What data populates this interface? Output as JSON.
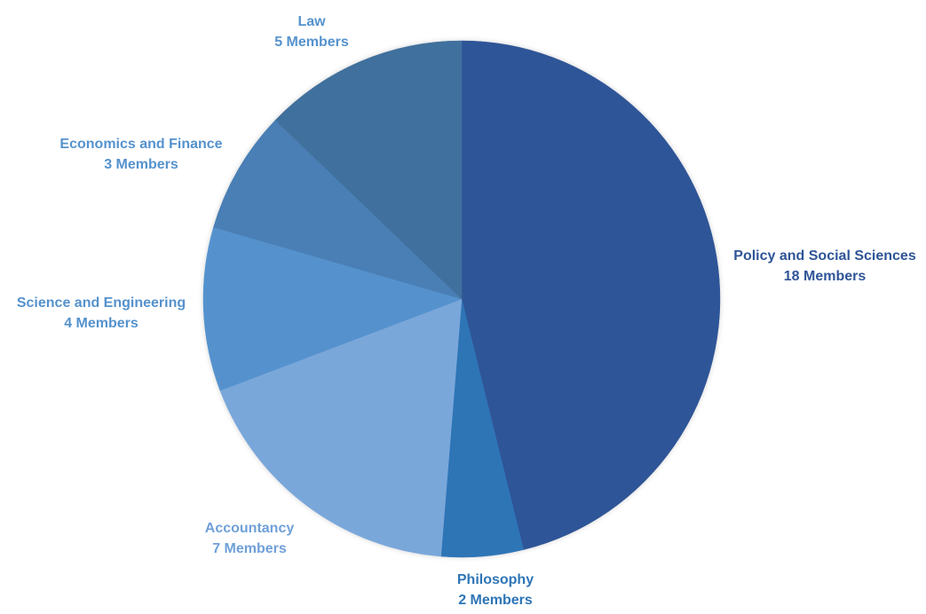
{
  "chart_data": {
    "type": "pie",
    "title": "",
    "start_angle_deg": 0,
    "direction": "clockwise",
    "slices": [
      {
        "label": "Policy and Social Sciences",
        "value": 18,
        "value_label": "18 Members",
        "color": "#2F5597",
        "label_color": "#2F5597"
      },
      {
        "label": "Philosophy",
        "value": 2,
        "value_label": "2 Members",
        "color": "#2E75B6",
        "label_color": "#2E75B6"
      },
      {
        "label": "Accountancy",
        "value": 7,
        "value_label": "7 Members",
        "color": "#7AA7DA",
        "label_color": "#6FA0D8"
      },
      {
        "label": "Science and Engineering",
        "value": 4,
        "value_label": "4 Members",
        "color": "#5592CD",
        "label_color": "#5592CD"
      },
      {
        "label": "Economics and Finance",
        "value": 3,
        "value_label": "3 Members",
        "color": "#4A7FB5",
        "label_color": "#5592CD"
      },
      {
        "label": "Law",
        "value": 5,
        "value_label": "5 Members",
        "color": "#41709D",
        "label_color": "#5592CD"
      }
    ],
    "legend": "none",
    "labels_outside": true
  }
}
